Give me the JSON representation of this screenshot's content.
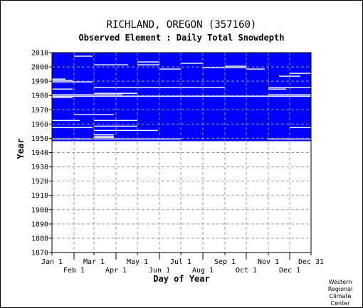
{
  "chart_data": {
    "type": "heatmap",
    "title": "RICHLAND, OREGON   (357160)",
    "subtitle": "Observed Element : Daily Total Snowdepth",
    "xlabel": "Day of Year",
    "ylabel": "Year",
    "ylim": [
      1870,
      2010
    ],
    "xlim": [
      1,
      365
    ],
    "y_ticks": [
      1870,
      1880,
      1890,
      1900,
      1910,
      1920,
      1930,
      1940,
      1950,
      1960,
      1970,
      1980,
      1990,
      2000,
      2010
    ],
    "x_ticks_upper": [
      {
        "label": "Jan 1",
        "day": 1
      },
      {
        "label": "Mar 1",
        "day": 60
      },
      {
        "label": "May 1",
        "day": 121
      },
      {
        "label": "Jul 1",
        "day": 182
      },
      {
        "label": "Sep 1",
        "day": 244
      },
      {
        "label": "Nov 1",
        "day": 305
      },
      {
        "label": "Dec 31",
        "day": 365
      }
    ],
    "x_ticks_lower": [
      {
        "label": "Feb 1",
        "day": 32
      },
      {
        "label": "Apr 1",
        "day": 91
      },
      {
        "label": "Jun 1",
        "day": 152
      },
      {
        "label": "Aug 1",
        "day": 213
      },
      {
        "label": "Oct 1",
        "day": 274
      },
      {
        "label": "Dec 1",
        "day": 335
      }
    ],
    "record_start_year": 1948,
    "record_end_year": 2010,
    "data_color": "#0000ff",
    "missing_color": "#ffffff",
    "grid": "dashed",
    "missing_segments": [
      {
        "year": 1949,
        "from_day": 1,
        "to_day": 30
      },
      {
        "year": 1949,
        "from_day": 32,
        "to_day": 58
      },
      {
        "year": 1949,
        "from_day": 60,
        "to_day": 182
      },
      {
        "year": 1949,
        "from_day": 305,
        "to_day": 365
      },
      {
        "year": 1950,
        "from_day": 60,
        "to_day": 88
      },
      {
        "year": 1951,
        "from_day": 60,
        "to_day": 88
      },
      {
        "year": 1952,
        "from_day": 60,
        "to_day": 88
      },
      {
        "year": 1955,
        "from_day": 60,
        "to_day": 150
      },
      {
        "year": 1957,
        "from_day": 1,
        "to_day": 58
      },
      {
        "year": 1957,
        "from_day": 335,
        "to_day": 365
      },
      {
        "year": 1958,
        "from_day": 60,
        "to_day": 121
      },
      {
        "year": 1962,
        "from_day": 1,
        "to_day": 40
      },
      {
        "year": 1962,
        "from_day": 60,
        "to_day": 121
      },
      {
        "year": 1966,
        "from_day": 32,
        "to_day": 88
      },
      {
        "year": 1978,
        "from_day": 1,
        "to_day": 30
      },
      {
        "year": 1979,
        "from_day": 1,
        "to_day": 365
      },
      {
        "year": 1980,
        "from_day": 1,
        "to_day": 100
      },
      {
        "year": 1980,
        "from_day": 305,
        "to_day": 365
      },
      {
        "year": 1981,
        "from_day": 60,
        "to_day": 121
      },
      {
        "year": 1984,
        "from_day": 1,
        "to_day": 30
      },
      {
        "year": 1984,
        "from_day": 305,
        "to_day": 330
      },
      {
        "year": 1985,
        "from_day": 60,
        "to_day": 244
      },
      {
        "year": 1985,
        "from_day": 305,
        "to_day": 365
      },
      {
        "year": 1989,
        "from_day": 1,
        "to_day": 58
      },
      {
        "year": 1990,
        "from_day": 1,
        "to_day": 30
      },
      {
        "year": 1991,
        "from_day": 1,
        "to_day": 20
      },
      {
        "year": 1993,
        "from_day": 320,
        "to_day": 350
      },
      {
        "year": 1995,
        "from_day": 335,
        "to_day": 365
      },
      {
        "year": 1998,
        "from_day": 152,
        "to_day": 182
      },
      {
        "year": 1998,
        "from_day": 274,
        "to_day": 300
      },
      {
        "year": 1999,
        "from_day": 213,
        "to_day": 274
      },
      {
        "year": 2000,
        "from_day": 244,
        "to_day": 274
      },
      {
        "year": 2001,
        "from_day": 60,
        "to_day": 108
      },
      {
        "year": 2001,
        "from_day": 121,
        "to_day": 152
      },
      {
        "year": 2002,
        "from_day": 182,
        "to_day": 213
      },
      {
        "year": 2003,
        "from_day": 121,
        "to_day": 152
      },
      {
        "year": 2007,
        "from_day": 32,
        "to_day": 58
      }
    ]
  },
  "footer": {
    "credit_lines": [
      "Western",
      "Regional",
      "Climate",
      "Center"
    ]
  }
}
